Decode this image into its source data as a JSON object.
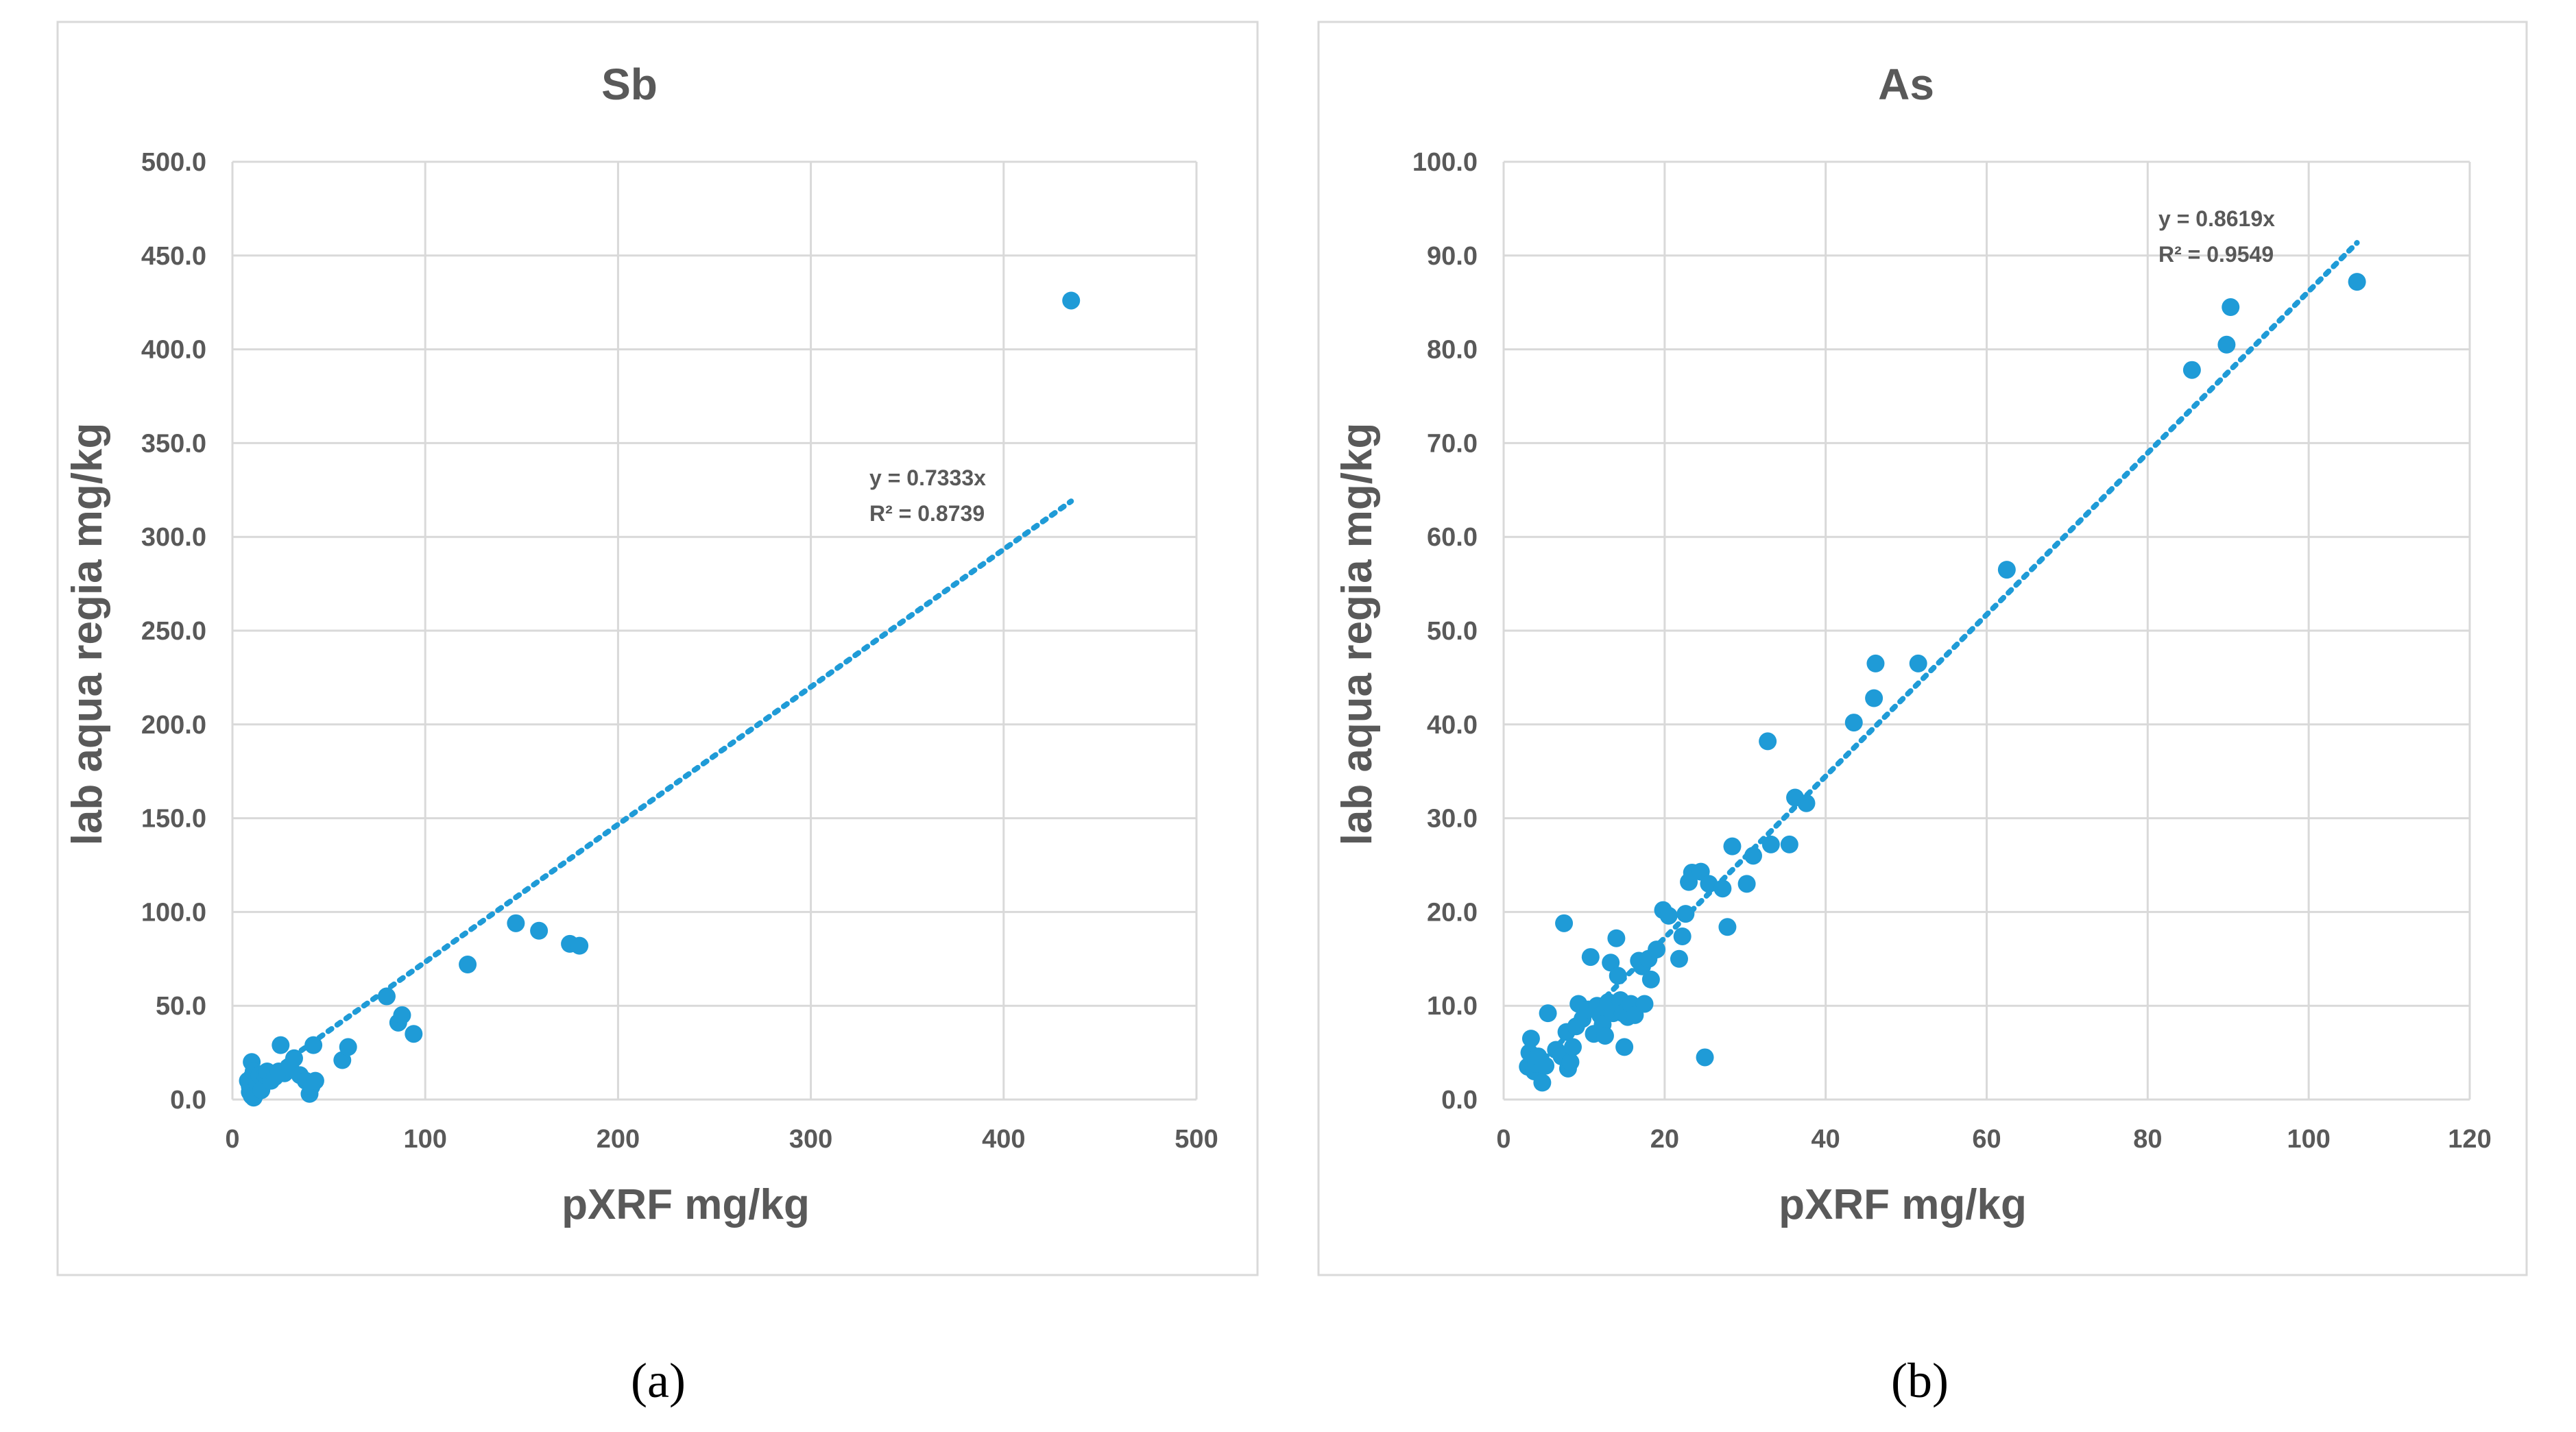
{
  "chart_data": [
    {
      "type": "scatter",
      "title": "Sb",
      "xlabel": "pXRF mg/kg",
      "ylabel": "lab aqua regia mg/kg",
      "xlim": [
        0,
        500
      ],
      "ylim": [
        0,
        500
      ],
      "x_ticks": [
        "0",
        "100",
        "200",
        "300",
        "400",
        "500"
      ],
      "y_ticks": [
        "0.0",
        "50.0",
        "100.0",
        "150.0",
        "200.0",
        "250.0",
        "300.0",
        "350.0",
        "400.0",
        "450.0",
        "500.0"
      ],
      "grid": true,
      "color": "#1f9bd7",
      "trendline": {
        "type": "linear-through-origin",
        "slope": 0.7333,
        "x_range": [
          8,
          435
        ],
        "equation": "y = 0.7333x",
        "r2": "R² = 0.8739"
      },
      "caption": "(a)",
      "points": [
        [
          8,
          10
        ],
        [
          9,
          4
        ],
        [
          9,
          7
        ],
        [
          10,
          2
        ],
        [
          10,
          12
        ],
        [
          10,
          20
        ],
        [
          11,
          1
        ],
        [
          11,
          15
        ],
        [
          12,
          3
        ],
        [
          13,
          8
        ],
        [
          14,
          13
        ],
        [
          15,
          5
        ],
        [
          17,
          13
        ],
        [
          18,
          15
        ],
        [
          20,
          10
        ],
        [
          22,
          12
        ],
        [
          24,
          15
        ],
        [
          25,
          29
        ],
        [
          27,
          14
        ],
        [
          30,
          17
        ],
        [
          32,
          22
        ],
        [
          35,
          13
        ],
        [
          38,
          10
        ],
        [
          40,
          3
        ],
        [
          41,
          7
        ],
        [
          42,
          29
        ],
        [
          43,
          10
        ],
        [
          57,
          21
        ],
        [
          60,
          28
        ],
        [
          80,
          55
        ],
        [
          86,
          41
        ],
        [
          88,
          45
        ],
        [
          94,
          35
        ],
        [
          122,
          72
        ],
        [
          147,
          94
        ],
        [
          159,
          90
        ],
        [
          175,
          83
        ],
        [
          180,
          82
        ],
        [
          435,
          426
        ]
      ]
    },
    {
      "type": "scatter",
      "title": "As",
      "xlabel": "pXRF mg/kg",
      "ylabel": "lab aqua regia mg/kg",
      "xlim": [
        0,
        120
      ],
      "ylim": [
        0,
        100
      ],
      "x_ticks": [
        "0",
        "20",
        "40",
        "60",
        "80",
        "100",
        "120"
      ],
      "y_ticks": [
        "0.0",
        "10.0",
        "20.0",
        "30.0",
        "40.0",
        "50.0",
        "60.0",
        "70.0",
        "80.0",
        "90.0",
        "100.0"
      ],
      "grid": true,
      "color": "#1f9bd7",
      "trendline": {
        "type": "linear-through-origin",
        "slope": 0.8619,
        "x_range": [
          5,
          106
        ],
        "equation": "y = 0.8619x",
        "r2": "R² = 0.9549"
      },
      "caption": "(b)",
      "points": [
        [
          3.0,
          3.5
        ],
        [
          3.2,
          5.0
        ],
        [
          3.4,
          6.5
        ],
        [
          3.6,
          4.2
        ],
        [
          3.8,
          3.0
        ],
        [
          4.0,
          3.8
        ],
        [
          4.3,
          4.6
        ],
        [
          4.8,
          1.8
        ],
        [
          5.2,
          3.6
        ],
        [
          5.5,
          9.2
        ],
        [
          6.5,
          5.3
        ],
        [
          7.2,
          4.6
        ],
        [
          7.5,
          18.8
        ],
        [
          7.8,
          7.2
        ],
        [
          8.0,
          3.3
        ],
        [
          8.3,
          4.0
        ],
        [
          8.6,
          5.6
        ],
        [
          9.0,
          7.8
        ],
        [
          9.3,
          10.2
        ],
        [
          9.8,
          8.6
        ],
        [
          10.5,
          9.6
        ],
        [
          10.8,
          15.2
        ],
        [
          11.2,
          7.0
        ],
        [
          11.6,
          10.0
        ],
        [
          12.0,
          9.0
        ],
        [
          12.3,
          8.0
        ],
        [
          12.6,
          6.8
        ],
        [
          13.0,
          10.4
        ],
        [
          13.3,
          14.6
        ],
        [
          13.6,
          9.2
        ],
        [
          14.0,
          17.2
        ],
        [
          14.2,
          13.2
        ],
        [
          14.5,
          10.6
        ],
        [
          14.8,
          9.2
        ],
        [
          15.0,
          5.6
        ],
        [
          15.4,
          8.8
        ],
        [
          15.8,
          10.2
        ],
        [
          16.3,
          9.0
        ],
        [
          16.8,
          14.8
        ],
        [
          17.2,
          14.2
        ],
        [
          17.5,
          10.2
        ],
        [
          18.0,
          15.0
        ],
        [
          18.3,
          12.8
        ],
        [
          19.0,
          16.0
        ],
        [
          19.8,
          20.2
        ],
        [
          20.5,
          19.6
        ],
        [
          21.8,
          15.0
        ],
        [
          22.2,
          17.4
        ],
        [
          22.6,
          19.8
        ],
        [
          23.0,
          23.2
        ],
        [
          23.4,
          24.2
        ],
        [
          24.5,
          24.3
        ],
        [
          25.5,
          23.0
        ],
        [
          25.0,
          4.5
        ],
        [
          27.2,
          22.5
        ],
        [
          27.8,
          18.4
        ],
        [
          28.4,
          27.0
        ],
        [
          30.2,
          23.0
        ],
        [
          31.0,
          26.0
        ],
        [
          32.8,
          38.2
        ],
        [
          33.2,
          27.2
        ],
        [
          35.5,
          27.2
        ],
        [
          36.2,
          32.2
        ],
        [
          37.6,
          31.6
        ],
        [
          43.5,
          40.2
        ],
        [
          46.0,
          42.8
        ],
        [
          46.2,
          46.5
        ],
        [
          51.5,
          46.5
        ],
        [
          62.5,
          56.5
        ],
        [
          85.5,
          77.8
        ],
        [
          89.8,
          80.5
        ],
        [
          90.3,
          84.5
        ],
        [
          106.0,
          87.2
        ]
      ]
    }
  ]
}
